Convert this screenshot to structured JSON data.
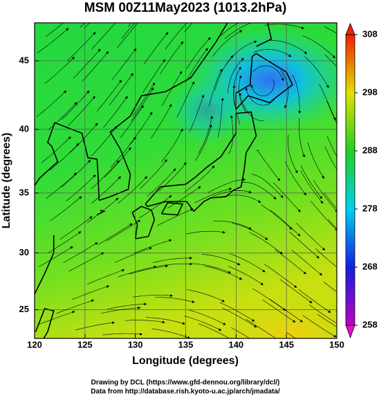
{
  "chart_data": {
    "type": "map",
    "title": "MSM 00Z11May2023 (1013.2hPa)",
    "xlabel": "Longitude (degrees)",
    "ylabel": "Latitude  (degrees)",
    "xlim": [
      120,
      150
    ],
    "ylim": [
      22.4,
      47.6
    ],
    "projection": "mercator",
    "xticks": [
      120,
      125,
      130,
      135,
      140,
      145,
      150
    ],
    "yticks": [
      25,
      30,
      35,
      40,
      45
    ],
    "grid": true,
    "colorbar": {
      "lim": [
        258,
        308
      ],
      "ticks": [
        258,
        268,
        278,
        288,
        298,
        308
      ]
    }
  },
  "footer": [
    "Drawing by DCL (https://www.gfd-dennou.org/library/dcl/)",
    "Data from http://database.rish.kyoto-u.ac.jp/arch/jmadata/"
  ]
}
